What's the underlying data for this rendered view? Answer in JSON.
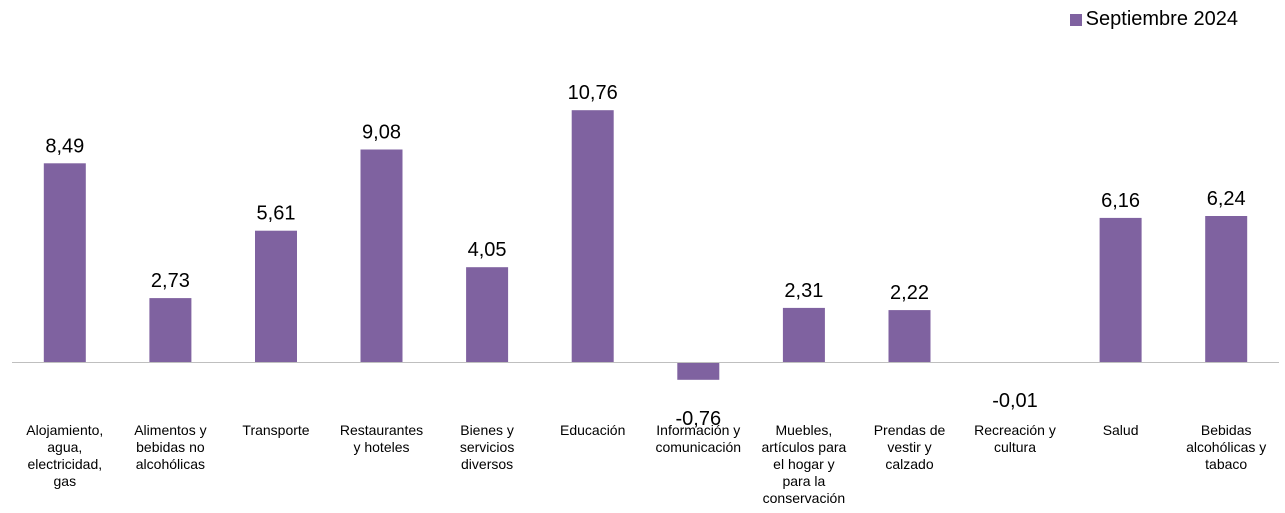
{
  "chart_data": {
    "type": "bar",
    "legend_position": "top-right",
    "grid": false,
    "ylim": [
      -1.5,
      13
    ],
    "series": [
      {
        "name": "Septiembre 2024",
        "color": "#7F62A0",
        "values": [
          8.49,
          2.73,
          5.61,
          9.08,
          4.05,
          10.76,
          -0.76,
          2.31,
          2.22,
          -0.01,
          6.16,
          6.24
        ],
        "value_labels": [
          "8,49",
          "2,73",
          "5,61",
          "9,08",
          "4,05",
          "10,76",
          "-0,76",
          "2,31",
          "2,22",
          "-0,01",
          "6,16",
          "6,24"
        ]
      }
    ],
    "categories": [
      [
        "Alojamiento,",
        "agua,",
        "electricidad,",
        "gas"
      ],
      [
        "Alimentos y",
        "bebidas no",
        "alcohólicas"
      ],
      [
        "Transporte"
      ],
      [
        "Restaurantes",
        "y hoteles"
      ],
      [
        "Bienes y",
        "servicios",
        "diversos"
      ],
      [
        "Educación"
      ],
      [
        "Información y",
        "comunicación"
      ],
      [
        "Muebles,",
        "artículos para",
        "el hogar y",
        "para la",
        "conservación"
      ],
      [
        "Prendas de",
        "vestir y",
        "calzado"
      ],
      [
        "Recreación y",
        "cultura"
      ],
      [
        "Salud"
      ],
      [
        "Bebidas",
        "alcohólicas y",
        "tabaco"
      ]
    ]
  }
}
